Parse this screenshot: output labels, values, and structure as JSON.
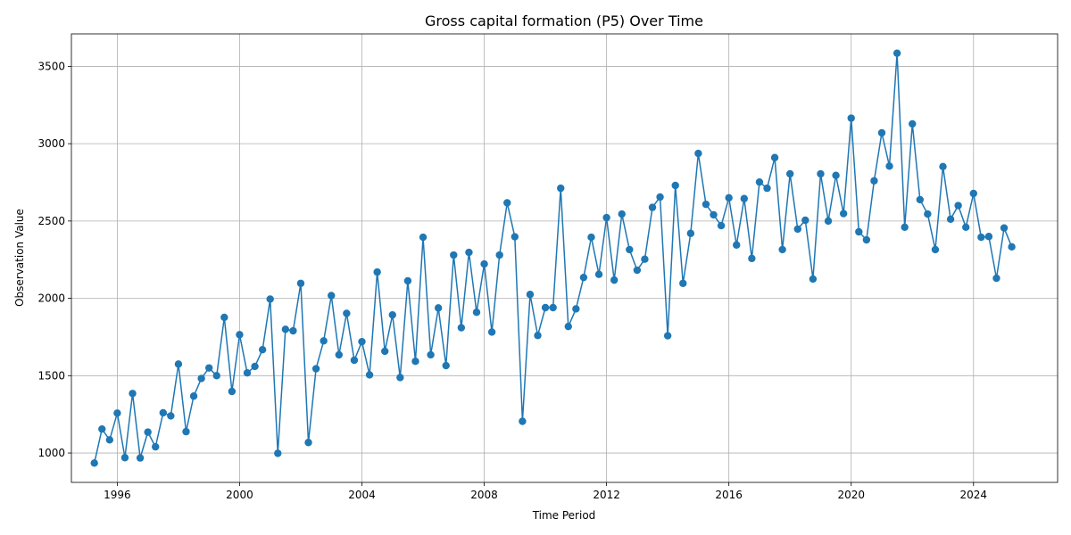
{
  "chart_data": {
    "type": "line",
    "title": "Gross capital formation (P5) Over Time",
    "xlabel": "Time Period",
    "ylabel": "Observation Value",
    "xlim": [
      1994.5,
      2026.75
    ],
    "ylim": [
      810,
      3710
    ],
    "x_ticks": [
      1996,
      2000,
      2004,
      2008,
      2012,
      2016,
      2020,
      2024
    ],
    "x_tick_labels": [
      "1996",
      "2000",
      "2004",
      "2008",
      "2012",
      "2016",
      "2020",
      "2024"
    ],
    "y_ticks": [
      1000,
      1500,
      2000,
      2500,
      3000,
      3500
    ],
    "y_tick_labels": [
      "1000",
      "1500",
      "2000",
      "2500",
      "3000",
      "3500"
    ],
    "grid": true,
    "color": "#1f77b4",
    "series": [
      {
        "x_start": 1995.25,
        "x_step": 0.25,
        "values": [
          935,
          1155,
          1085,
          1258,
          970,
          1385,
          968,
          1135,
          1040,
          1260,
          1240,
          1575,
          1138,
          1368,
          1482,
          1550,
          1500,
          1877,
          1398,
          1765,
          1518,
          1560,
          1668,
          1995,
          998,
          1800,
          1790,
          2097,
          1068,
          1545,
          1725,
          2018,
          1635,
          1903,
          1600,
          1720,
          1505,
          2170,
          1658,
          1893,
          1488,
          2113,
          1593,
          2395,
          1635,
          1938,
          1565,
          2280,
          1810,
          2297,
          1910,
          2222,
          1782,
          2280,
          2618,
          2398,
          1205,
          2025,
          1760,
          1940,
          1940,
          2712,
          1818,
          1932,
          2135,
          2395,
          2155,
          2522,
          2118,
          2545,
          2315,
          2182,
          2253,
          2588,
          2655,
          1758,
          2730,
          2097,
          2420,
          2937,
          2608,
          2540,
          2470,
          2650,
          2345,
          2645,
          2258,
          2752,
          2712,
          2910,
          2315,
          2805,
          2448,
          2505,
          2125,
          2805,
          2500,
          2795,
          2548,
          3165,
          2430,
          2378,
          2760,
          3070,
          2855,
          3585,
          2460,
          3128,
          2638,
          2545,
          2315,
          2852,
          2512,
          2600,
          2460,
          2678,
          2395,
          2400,
          2130,
          2455,
          2333
        ]
      }
    ]
  }
}
